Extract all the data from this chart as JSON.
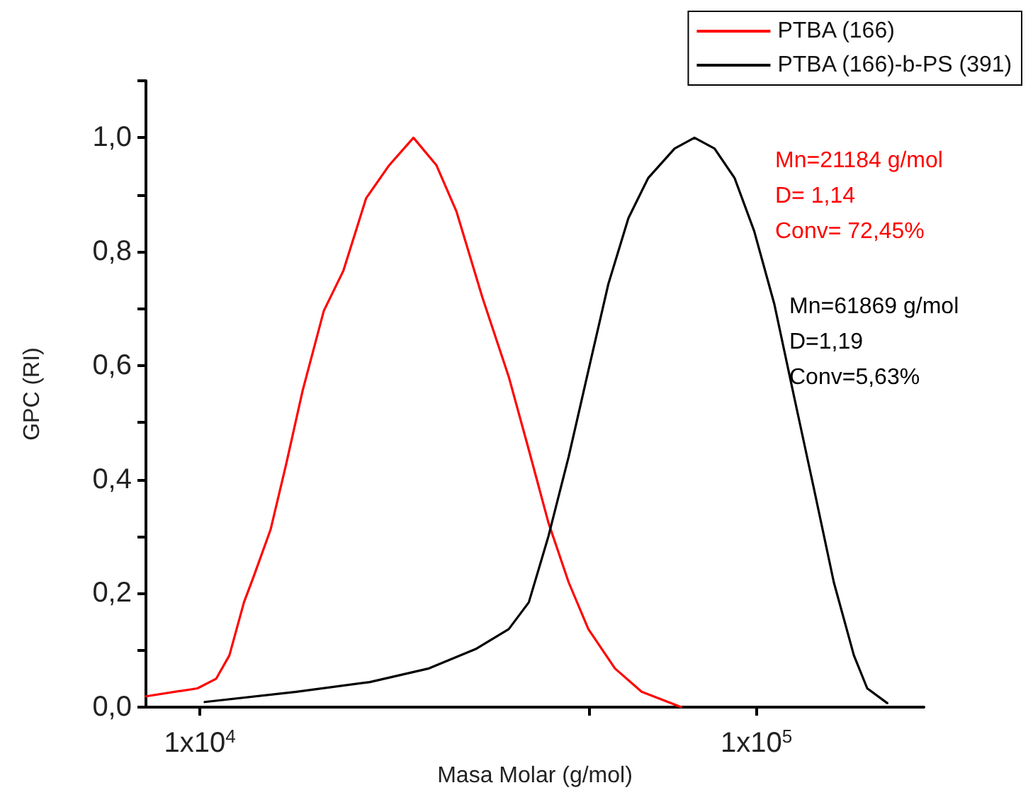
{
  "chart_data": {
    "type": "line",
    "xlabel": "Masa Molar (g/mol)",
    "ylabel": "GPC (RI)",
    "log": "x",
    "grid": false,
    "legend": "top right",
    "marker": "none",
    "line_style": "solid",
    "xlim": [
      8000,
      200000
    ],
    "xticks": [
      {
        "value": 10000,
        "label": "1x10$^{4}$"
      },
      {
        "value": 50000,
        "label": null
      },
      {
        "value": 100000,
        "label": "1x10$^{5}$"
      }
    ],
    "ylim": [
      0,
      1.1
    ],
    "yticks": [
      {
        "value": 0,
        "label": "0,0"
      },
      {
        "value": 0.1,
        "label": null
      },
      {
        "value": 0.2,
        "label": "0,2"
      },
      {
        "value": 0.3,
        "label": null
      },
      {
        "value": 0.4,
        "label": "0,4"
      },
      {
        "value": 0.5,
        "label": null
      },
      {
        "value": 0.6,
        "label": "0,6"
      },
      {
        "value": 0.7,
        "label": null
      },
      {
        "value": 0.8,
        "label": "0,8"
      },
      {
        "value": 0.9,
        "label": null
      },
      {
        "value": 1.0,
        "label": "1,0"
      },
      {
        "value": 1.1,
        "label": null
      }
    ],
    "annotations": [
      "Mn=21184 g/mol\nD= 1,14\nConv= 72,45%",
      "Mn=61869 g/mol\nD=1,19\nConv=5,63%"
    ],
    "series": [
      {
        "name": "PTBA (166)",
        "color": "#ff0000",
        "x": [
          8000,
          9900,
          10700,
          11300,
          12000,
          12500,
          13400,
          14300,
          15300,
          16700,
          18100,
          19900,
          21900,
          24200,
          26600,
          28900,
          32200,
          35900,
          39000,
          42300,
          46000,
          49900,
          55700,
          62200,
          73300
        ],
        "values": [
          0.019,
          0.033,
          0.05,
          0.091,
          0.184,
          0.23,
          0.312,
          0.428,
          0.556,
          0.696,
          0.766,
          0.894,
          0.952,
          1.0,
          0.952,
          0.871,
          0.719,
          0.58,
          0.452,
          0.324,
          0.219,
          0.137,
          0.068,
          0.027,
          0.0
        ]
      },
      {
        "name": "PTBA (166)-b-PS (391)",
        "color": "#000000",
        "x": [
          10200,
          14900,
          20200,
          25800,
          31300,
          35900,
          39000,
          42300,
          46000,
          49900,
          54200,
          58900,
          63900,
          71300,
          77400,
          84100,
          91400,
          99100,
          107700,
          116900,
          127000,
          137800,
          149700,
          158200,
          171900
        ],
        "values": [
          0.009,
          0.027,
          0.044,
          0.068,
          0.102,
          0.137,
          0.184,
          0.3,
          0.44,
          0.591,
          0.743,
          0.859,
          0.929,
          0.981,
          1.0,
          0.981,
          0.929,
          0.836,
          0.708,
          0.545,
          0.382,
          0.219,
          0.091,
          0.033,
          0.007
        ]
      }
    ]
  }
}
